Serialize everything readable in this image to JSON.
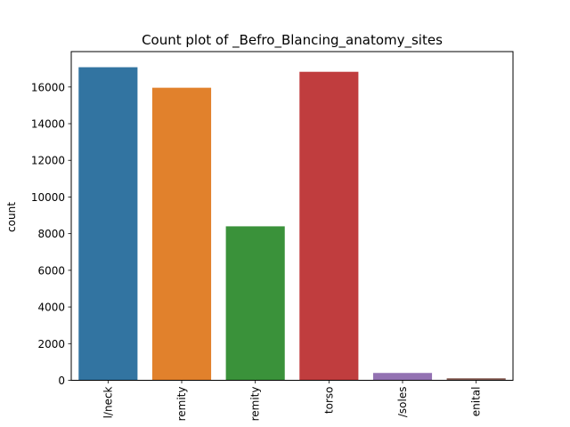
{
  "chart_data": {
    "type": "bar",
    "title": "Count plot of _Befro_Blancing_anatomy_sites",
    "xlabel": "",
    "ylabel": "count",
    "categories": [
      "l/neck",
      "remity",
      "remity",
      "torso",
      "/soles",
      "enital"
    ],
    "values": [
      17080,
      15960,
      8400,
      16830,
      400,
      110
    ],
    "colors": [
      "#3274a1",
      "#e1812c",
      "#3a923a",
      "#c03d3e",
      "#9372b2",
      "#845b53"
    ],
    "ylim": [
      0,
      17932
    ],
    "yticks": [
      0,
      2000,
      4000,
      6000,
      8000,
      10000,
      12000,
      14000,
      16000
    ],
    "grid": false,
    "legend": "none"
  }
}
